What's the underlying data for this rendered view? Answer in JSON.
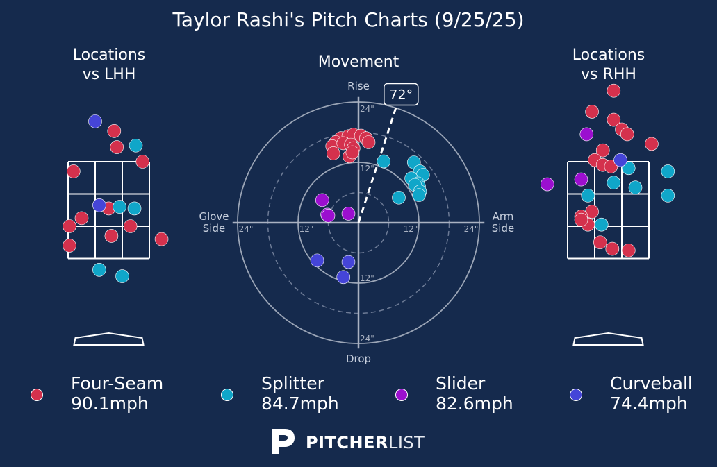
{
  "title": "Taylor Rashi's Pitch Charts (9/25/25)",
  "panels": {
    "lhh_title_line1": "Locations",
    "lhh_title_line2": "vs LHH",
    "movement_title": "Movement",
    "rhh_title_line1": "Locations",
    "rhh_title_line2": "vs RHH"
  },
  "colors": {
    "background": "#152a4d",
    "four_seam": "#d4314d",
    "splitter": "#10a6c9",
    "slider": "#9b0fcf",
    "curveball": "#4545d8",
    "axis": "#aab2c2",
    "arm_angle": "#ffffff"
  },
  "chart_data": [
    {
      "type": "scatter",
      "name": "locations-vs-lhh",
      "title": "Locations vs LHH",
      "x_units": "plate_x (grid columns, strike zone spans 0 to 3)",
      "y_units": "plate_z (grid rows, strike zone spans 0 to 3)",
      "xlim": [
        -1.2,
        4.2
      ],
      "ylim": [
        -1.5,
        5.5
      ],
      "series": [
        {
          "name": "Four-Seam",
          "color_key": "four_seam",
          "points": [
            [
              0.2,
              2.7
            ],
            [
              1.7,
              3.95
            ],
            [
              1.8,
              3.45
            ],
            [
              2.75,
              3.0
            ],
            [
              0.05,
              1.0
            ],
            [
              0.5,
              1.25
            ],
            [
              1.5,
              1.55
            ],
            [
              2.3,
              1.0
            ],
            [
              1.6,
              0.7
            ],
            [
              3.45,
              0.6
            ],
            [
              0.05,
              0.4
            ]
          ]
        },
        {
          "name": "Splitter",
          "color_key": "splitter",
          "points": [
            [
              2.5,
              3.5
            ],
            [
              1.9,
              1.6
            ],
            [
              2.45,
              1.55
            ],
            [
              1.15,
              -0.35
            ],
            [
              2.0,
              -0.55
            ]
          ]
        },
        {
          "name": "Slider",
          "color_key": "slider",
          "points": []
        },
        {
          "name": "Curveball",
          "color_key": "curveball",
          "points": [
            [
              1.0,
              4.25
            ],
            [
              1.15,
              1.65
            ]
          ]
        }
      ]
    },
    {
      "type": "scatter",
      "name": "movement",
      "title": "Movement",
      "x_units": "horizontal break (inches, + toward arm side)",
      "y_units": "induced vertical break (inches)",
      "xlim": [
        -25,
        25
      ],
      "ylim": [
        -25,
        25
      ],
      "ring_labels": [
        "12\"",
        "24\""
      ],
      "axis_labels": {
        "top": "Rise",
        "bottom": "Drop",
        "left_1": "Glove",
        "left_2": "Side",
        "right_1": "Arm",
        "right_2": "Side"
      },
      "tick_labels": {
        "top_24": "24\"",
        "top_12": "12\"",
        "bottom_12": "12\"",
        "bottom_24": "24\"",
        "left_24": "24\"",
        "left_12": "12\"",
        "right_12": "12\"",
        "right_24": "24\""
      },
      "arm_angle": {
        "label": "72°",
        "degrees": 72,
        "length_in": 24
      },
      "series": [
        {
          "name": "Four-Seam",
          "color_key": "four_seam",
          "points": [
            [
              -3.5,
              16.8
            ],
            [
              -2,
              17.2
            ],
            [
              -1,
              17.5
            ],
            [
              0.5,
              17.3
            ],
            [
              1.5,
              16.8
            ],
            [
              2,
              16
            ],
            [
              -4.5,
              16
            ],
            [
              -5.2,
              15.2
            ],
            [
              -3,
              15.8
            ],
            [
              -1.5,
              15.5
            ],
            [
              -1,
              14.8
            ],
            [
              -1.8,
              13.2
            ],
            [
              -5,
              13.8
            ],
            [
              -1.2,
              14
            ]
          ]
        },
        {
          "name": "Splitter",
          "color_key": "splitter",
          "points": [
            [
              5,
              12.2
            ],
            [
              11,
              12
            ],
            [
              12.2,
              10.2
            ],
            [
              12.8,
              9.5
            ],
            [
              10.5,
              8.8
            ],
            [
              11.8,
              7.8
            ],
            [
              12,
              7.2
            ],
            [
              11.2,
              7.5
            ],
            [
              12.2,
              6.2
            ],
            [
              12,
              5.5
            ],
            [
              8,
              5
            ]
          ]
        },
        {
          "name": "Slider",
          "color_key": "slider",
          "points": [
            [
              -7.2,
              4.5
            ],
            [
              -2,
              1.8
            ],
            [
              -6.2,
              1.6
            ],
            [
              -6,
              1.4
            ]
          ]
        },
        {
          "name": "Curveball",
          "color_key": "curveball",
          "points": [
            [
              -8.2,
              -7.5
            ],
            [
              -2,
              -7.8
            ],
            [
              -3,
              -10.8
            ]
          ]
        }
      ]
    },
    {
      "type": "scatter",
      "name": "locations-vs-rhh",
      "title": "Locations vs RHH",
      "x_units": "plate_x (grid columns, strike zone spans 0 to 3)",
      "y_units": "plate_z (grid rows, strike zone spans 0 to 3)",
      "xlim": [
        -1.2,
        4.2
      ],
      "ylim": [
        -1.5,
        5.5
      ],
      "series": [
        {
          "name": "Four-Seam",
          "color_key": "four_seam",
          "points": [
            [
              1.7,
              5.2
            ],
            [
              0.9,
              4.55
            ],
            [
              1.7,
              4.3
            ],
            [
              2.0,
              4.0
            ],
            [
              2.2,
              3.85
            ],
            [
              3.1,
              3.55
            ],
            [
              1.3,
              3.35
            ],
            [
              1.0,
              3.05
            ],
            [
              1.3,
              2.9
            ],
            [
              1.6,
              2.85
            ],
            [
              0.9,
              1.45
            ],
            [
              0.5,
              1.3
            ],
            [
              0.75,
              1.05
            ],
            [
              0.5,
              1.2
            ],
            [
              1.2,
              0.5
            ],
            [
              1.65,
              0.3
            ],
            [
              2.25,
              0.25
            ]
          ]
        },
        {
          "name": "Splitter",
          "color_key": "splitter",
          "points": [
            [
              2.25,
              2.8
            ],
            [
              3.7,
              2.7
            ],
            [
              1.7,
              2.35
            ],
            [
              2.5,
              2.2
            ],
            [
              0.75,
              1.95
            ],
            [
              3.7,
              1.95
            ],
            [
              1.25,
              1.05
            ]
          ]
        },
        {
          "name": "Slider",
          "color_key": "slider",
          "points": [
            [
              0.7,
              3.85
            ],
            [
              0.5,
              2.45
            ],
            [
              -0.75,
              2.3
            ]
          ]
        },
        {
          "name": "Curveball",
          "color_key": "curveball",
          "points": [
            [
              1.95,
              3.05
            ]
          ]
        }
      ]
    }
  ],
  "legend": [
    {
      "name": "Four-Seam",
      "speed": "90.1mph",
      "color_key": "four_seam"
    },
    {
      "name": "Splitter",
      "speed": "84.7mph",
      "color_key": "splitter"
    },
    {
      "name": "Slider",
      "speed": "82.6mph",
      "color_key": "slider"
    },
    {
      "name": "Curveball",
      "speed": "74.4mph",
      "color_key": "curveball"
    }
  ],
  "logo": {
    "bold": "PITCHER",
    "light": "LIST",
    "icon": "pitcherlist-p-icon"
  }
}
